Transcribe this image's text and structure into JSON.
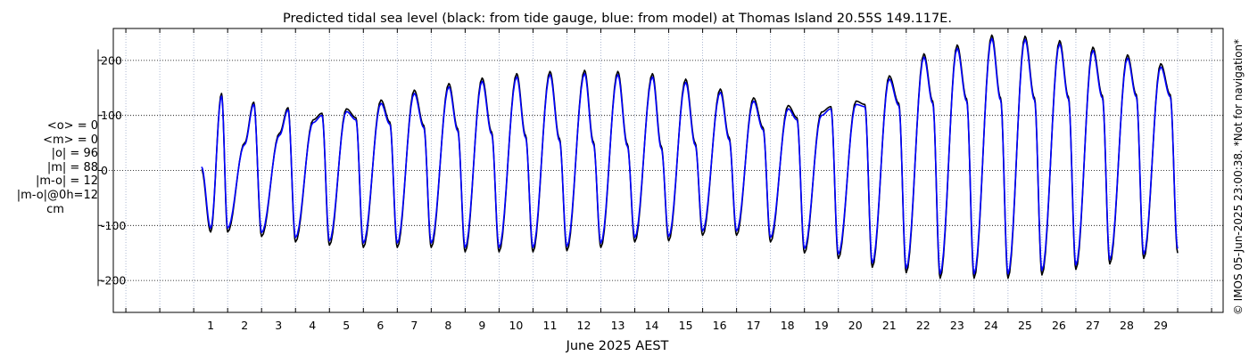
{
  "chart_data": {
    "type": "line",
    "title": "Predicted tidal sea level (black: from tide gauge, blue: from model) at Thomas Island 20.55S 149.117E.",
    "xlabel": "June 2025 AEST",
    "ylabel": "",
    "x_ticks": [
      "1",
      "2",
      "3",
      "4",
      "5",
      "6",
      "7",
      "8",
      "9",
      "10",
      "11",
      "12",
      "13",
      "14",
      "15",
      "16",
      "17",
      "18",
      "19",
      "20",
      "21",
      "22",
      "23",
      "24",
      "25",
      "26",
      "27",
      "28",
      "29"
    ],
    "y_ticks": [
      "200",
      "100",
      "0",
      "-100",
      "-200"
    ],
    "y_tick_values": [
      200,
      100,
      0,
      -100,
      -200
    ],
    "xlim_days": [
      -2.37,
      30.34
    ],
    "data_start_day": 0.23,
    "data_end_day": 30.05,
    "ylim": [
      -258,
      258
    ],
    "grid": true,
    "grid_style": "dotted",
    "series": [
      {
        "name": "black: from tide gauge",
        "color": "#000000"
      },
      {
        "name": "blue: from model",
        "color": "#0000ff"
      }
    ],
    "tide_extrema": {
      "time_day": [
        0.5,
        0.82,
        1.0,
        1.5,
        1.77,
        2.0,
        2.53,
        2.78,
        3.0,
        3.52,
        3.78,
        4.0,
        4.5,
        4.78,
        5.0,
        5.52,
        5.78,
        6.0,
        6.5,
        6.78,
        7.0,
        7.52,
        7.78,
        8.0,
        8.5,
        8.78,
        9.0,
        9.52,
        9.78,
        10.0,
        10.5,
        10.78,
        11.0,
        11.52,
        11.78,
        12.0,
        12.5,
        12.78,
        13.0,
        13.52,
        13.78,
        14.0,
        14.5,
        14.78,
        15.0,
        15.52,
        15.78,
        16.0,
        16.5,
        16.78,
        17.0,
        17.52,
        17.78,
        18.0,
        18.5,
        18.78,
        19.0,
        19.52,
        19.78,
        20.0,
        20.5,
        20.78,
        21.0,
        21.52,
        21.78,
        22.0,
        22.5,
        22.78,
        23.0,
        23.52,
        23.78,
        24.0,
        24.5,
        24.78,
        25.0,
        25.52,
        25.78,
        26.0,
        26.5,
        26.78,
        27.0,
        27.52,
        27.78,
        28.0,
        28.5,
        28.78,
        29.0,
        29.52,
        29.78
      ],
      "tide_gauge_cm": [
        -112,
        140,
        -112,
        50,
        124,
        -120,
        68,
        114,
        -130,
        92,
        104,
        -136,
        112,
        96,
        -140,
        128,
        88,
        -140,
        146,
        82,
        -140,
        158,
        76,
        -148,
        168,
        70,
        -148,
        176,
        64,
        -148,
        180,
        58,
        -146,
        182,
        52,
        -140,
        180,
        48,
        -130,
        176,
        44,
        -128,
        166,
        50,
        -118,
        148,
        60,
        -118,
        132,
        78,
        -130,
        118,
        96,
        -150,
        106,
        116,
        -160,
        126,
        120,
        -176,
        172,
        122,
        -186,
        212,
        126,
        -196,
        228,
        130,
        -196,
        246,
        132,
        -196,
        244,
        132,
        -190,
        236,
        134,
        -180,
        224,
        136,
        -170,
        210,
        138,
        -160,
        194,
        138,
        -150
      ],
      "model_cm": [
        -105,
        135,
        -105,
        47,
        120,
        -113,
        64,
        110,
        -122,
        87,
        100,
        -128,
        107,
        92,
        -132,
        122,
        84,
        -132,
        140,
        78,
        -132,
        152,
        72,
        -140,
        162,
        66,
        -140,
        170,
        60,
        -140,
        174,
        54,
        -138,
        176,
        48,
        -132,
        174,
        44,
        -122,
        170,
        40,
        -120,
        160,
        46,
        -110,
        142,
        56,
        -110,
        126,
        74,
        -122,
        112,
        92,
        -142,
        100,
        112,
        -152,
        120,
        116,
        -168,
        166,
        118,
        -178,
        206,
        122,
        -188,
        222,
        126,
        -188,
        240,
        128,
        -188,
        238,
        128,
        -182,
        230,
        130,
        -172,
        218,
        132,
        -162,
        204,
        134,
        -152,
        188,
        134,
        -142
      ]
    }
  },
  "stats_panel": {
    "mean_obs": "<o> = 0",
    "mean_model": "<m> = 0",
    "abs_obs": "|o| = 96",
    "abs_model": "|m| = 88",
    "abs_diff": "|m-o| = 12",
    "abs_diff_0h": "|m-o|@0h=12",
    "unit": "cm"
  },
  "copyright": "© IMOS 05-Jun-2025 23:00:38. *Not for navigation*"
}
